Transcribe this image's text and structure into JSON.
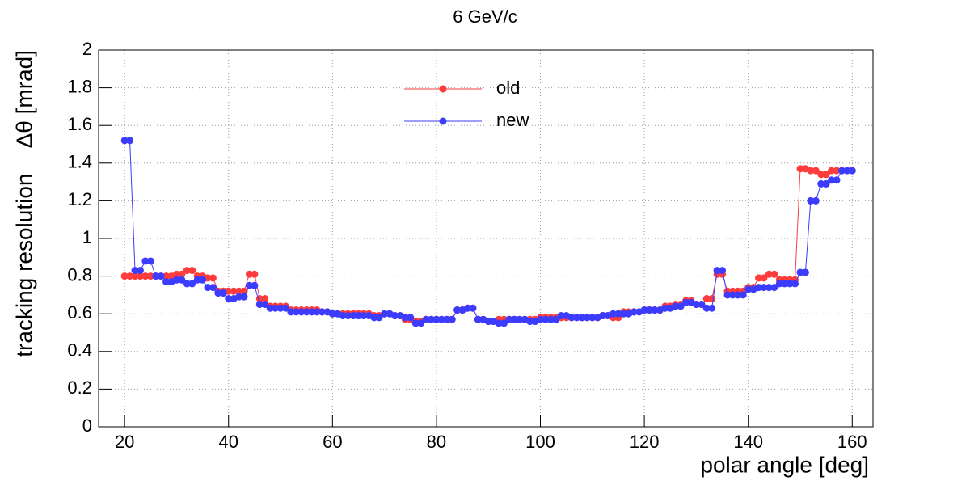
{
  "chart_data": {
    "type": "line",
    "title": "6 GeV/c",
    "x_label": "polar angle [deg]",
    "y_label": "tracking resolution    Δθ [mrad]",
    "x": [
      20,
      21,
      22,
      23,
      24,
      25,
      26,
      27,
      28,
      29,
      30,
      31,
      32,
      33,
      34,
      35,
      36,
      37,
      38,
      39,
      40,
      41,
      42,
      43,
      44,
      45,
      46,
      47,
      48,
      49,
      50,
      51,
      52,
      53,
      54,
      55,
      56,
      57,
      58,
      59,
      60,
      61,
      62,
      63,
      64,
      65,
      66,
      67,
      68,
      69,
      70,
      71,
      72,
      73,
      74,
      75,
      76,
      77,
      78,
      79,
      80,
      81,
      82,
      83,
      84,
      85,
      86,
      87,
      88,
      89,
      90,
      91,
      92,
      93,
      94,
      95,
      96,
      97,
      98,
      99,
      100,
      101,
      102,
      103,
      104,
      105,
      106,
      107,
      108,
      109,
      110,
      111,
      112,
      113,
      114,
      115,
      116,
      117,
      118,
      119,
      120,
      121,
      122,
      123,
      124,
      125,
      126,
      127,
      128,
      129,
      130,
      131,
      132,
      133,
      134,
      135,
      136,
      137,
      138,
      139,
      140,
      141,
      142,
      143,
      144,
      145,
      146,
      147,
      148,
      149,
      150,
      151,
      152,
      153,
      154,
      155,
      156,
      157,
      158,
      159,
      160
    ],
    "series": [
      {
        "name": "old",
        "color": "#ff3c3c",
        "values": [
          0.8,
          0.8,
          0.8,
          0.8,
          0.8,
          0.8,
          0.8,
          0.8,
          0.8,
          0.8,
          0.81,
          0.81,
          0.83,
          0.83,
          0.8,
          0.8,
          0.79,
          0.79,
          0.72,
          0.72,
          0.72,
          0.72,
          0.72,
          0.72,
          0.81,
          0.81,
          0.68,
          0.68,
          0.64,
          0.64,
          0.64,
          0.64,
          0.62,
          0.62,
          0.62,
          0.62,
          0.62,
          0.62,
          0.61,
          0.61,
          0.6,
          0.6,
          0.6,
          0.6,
          0.6,
          0.6,
          0.6,
          0.6,
          0.59,
          0.59,
          0.6,
          0.6,
          0.59,
          0.59,
          0.57,
          0.57,
          0.56,
          0.56,
          0.57,
          0.57,
          0.57,
          0.57,
          0.57,
          0.57,
          0.62,
          0.62,
          0.63,
          0.63,
          0.57,
          0.57,
          0.56,
          0.56,
          0.57,
          0.57,
          0.57,
          0.57,
          0.57,
          0.57,
          0.57,
          0.57,
          0.58,
          0.58,
          0.58,
          0.58,
          0.58,
          0.58,
          0.58,
          0.58,
          0.58,
          0.58,
          0.58,
          0.58,
          0.59,
          0.59,
          0.58,
          0.58,
          0.61,
          0.61,
          0.61,
          0.61,
          0.62,
          0.62,
          0.62,
          0.62,
          0.64,
          0.64,
          0.65,
          0.65,
          0.67,
          0.67,
          0.65,
          0.65,
          0.68,
          0.68,
          0.81,
          0.81,
          0.72,
          0.72,
          0.72,
          0.72,
          0.74,
          0.74,
          0.79,
          0.79,
          0.81,
          0.81,
          0.78,
          0.78,
          0.78,
          0.78,
          1.37,
          1.37,
          1.36,
          1.36,
          1.34,
          1.34,
          1.36,
          1.36,
          1.36,
          1.36,
          1.36
        ]
      },
      {
        "name": "new",
        "color": "#3c3cff",
        "values": [
          1.52,
          1.52,
          0.83,
          0.83,
          0.88,
          0.88,
          0.8,
          0.8,
          0.77,
          0.77,
          0.78,
          0.78,
          0.76,
          0.76,
          0.78,
          0.78,
          0.74,
          0.74,
          0.71,
          0.71,
          0.68,
          0.68,
          0.69,
          0.69,
          0.75,
          0.75,
          0.65,
          0.65,
          0.63,
          0.63,
          0.63,
          0.63,
          0.61,
          0.61,
          0.61,
          0.61,
          0.61,
          0.61,
          0.61,
          0.61,
          0.6,
          0.6,
          0.59,
          0.59,
          0.59,
          0.59,
          0.59,
          0.59,
          0.58,
          0.58,
          0.6,
          0.6,
          0.59,
          0.59,
          0.58,
          0.58,
          0.55,
          0.55,
          0.57,
          0.57,
          0.57,
          0.57,
          0.57,
          0.57,
          0.62,
          0.62,
          0.63,
          0.63,
          0.57,
          0.57,
          0.56,
          0.56,
          0.55,
          0.55,
          0.57,
          0.57,
          0.57,
          0.57,
          0.56,
          0.56,
          0.57,
          0.57,
          0.57,
          0.57,
          0.59,
          0.59,
          0.58,
          0.58,
          0.58,
          0.58,
          0.58,
          0.58,
          0.59,
          0.59,
          0.6,
          0.6,
          0.6,
          0.6,
          0.61,
          0.61,
          0.62,
          0.62,
          0.62,
          0.62,
          0.63,
          0.63,
          0.64,
          0.64,
          0.66,
          0.66,
          0.65,
          0.65,
          0.63,
          0.63,
          0.83,
          0.83,
          0.7,
          0.7,
          0.7,
          0.7,
          0.73,
          0.73,
          0.74,
          0.74,
          0.74,
          0.74,
          0.76,
          0.76,
          0.76,
          0.76,
          0.82,
          0.82,
          1.2,
          1.2,
          1.29,
          1.29,
          1.31,
          1.31,
          1.36,
          1.36,
          1.36
        ]
      }
    ],
    "xlim": [
      15,
      164
    ],
    "ylim": [
      0,
      2
    ],
    "xticks": [
      20,
      40,
      60,
      80,
      100,
      120,
      140,
      160
    ],
    "yticks": [
      0,
      0.2,
      0.4,
      0.6,
      0.8,
      1,
      1.2,
      1.4,
      1.6,
      1.8,
      2
    ],
    "grid": true,
    "legend": "top"
  }
}
